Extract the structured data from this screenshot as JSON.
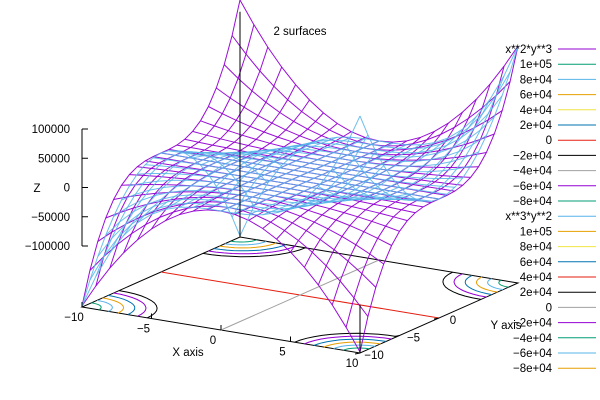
{
  "chart_data": {
    "type": "surface",
    "title": "2 surfaces",
    "xlabel": "X axis",
    "ylabel": "Y axis",
    "zlabel": "Z",
    "xlim": [
      -10,
      10
    ],
    "ylim": [
      -10,
      10
    ],
    "zlim": [
      -100000,
      100000
    ],
    "x_ticks": [
      "−10",
      "−5",
      "0",
      "5",
      "10"
    ],
    "y_ticks": [
      "−10",
      "−5",
      "0"
    ],
    "z_ticks": [
      "100000",
      "50000",
      "0",
      "−50000",
      "−100000"
    ],
    "grid_samples": 21,
    "surface_color": "#9400d3",
    "series": [
      {
        "name": "x**2*y**3",
        "color": "#9400d3",
        "contour_levels": [
          {
            "label": "1e+05",
            "color": "#009e73"
          },
          {
            "label": "8e+04",
            "color": "#56b4e9"
          },
          {
            "label": "6e+04",
            "color": "#e69f00"
          },
          {
            "label": "4e+04",
            "color": "#f0e442"
          },
          {
            "label": "2e+04",
            "color": "#0072b2"
          },
          {
            "label": "0",
            "color": "#e51e10"
          },
          {
            "label": "−2e+04",
            "color": "#000000"
          },
          {
            "label": "−4e+04",
            "color": "#a0a0a0"
          },
          {
            "label": "−6e+04",
            "color": "#9400d3"
          },
          {
            "label": "−8e+04",
            "color": "#009e73"
          }
        ]
      },
      {
        "name": "x**3*y**2",
        "color": "#56b4e9",
        "contour_levels": [
          {
            "label": "1e+05",
            "color": "#e69f00"
          },
          {
            "label": "8e+04",
            "color": "#f0e442"
          },
          {
            "label": "6e+04",
            "color": "#0072b2"
          },
          {
            "label": "4e+04",
            "color": "#e51e10"
          },
          {
            "label": "2e+04",
            "color": "#000000"
          },
          {
            "label": "0",
            "color": "#a0a0a0"
          },
          {
            "label": "−2e+04",
            "color": "#9400d3"
          },
          {
            "label": "−4e+04",
            "color": "#009e73"
          },
          {
            "label": "−6e+04",
            "color": "#56b4e9"
          },
          {
            "label": "−8e+04",
            "color": "#e69f00"
          }
        ]
      }
    ]
  }
}
